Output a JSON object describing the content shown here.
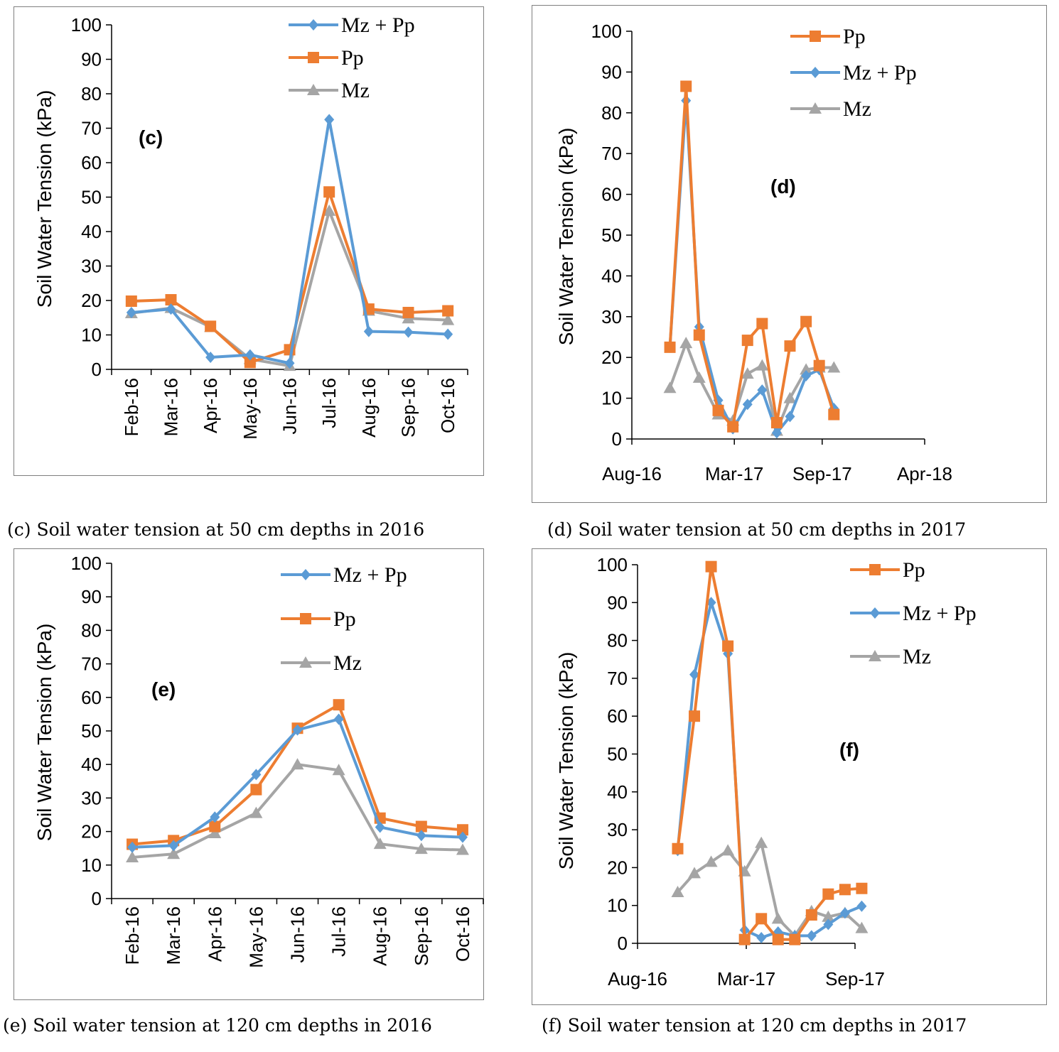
{
  "colors": {
    "mzpp": "#5B9BD5",
    "pp": "#ED7D31",
    "mz": "#A5A5A5",
    "axis": "#000000"
  },
  "chart_data": [
    {
      "id": "c",
      "type": "line",
      "panel_label": "(c)",
      "ylabel": "Soil Water Tension (kPa)",
      "ylim": [
        0,
        100
      ],
      "yticks": [
        0,
        10,
        20,
        30,
        40,
        50,
        60,
        70,
        80,
        90,
        100
      ],
      "categories": [
        "Feb-16",
        "Mar-16",
        "Apr-16",
        "May-16",
        "Jun-16",
        "Jul-16",
        "Aug-16",
        "Sep-16",
        "Oct-16"
      ],
      "legend": [
        "Mz + Pp",
        "Pp",
        "Mz"
      ],
      "series": [
        {
          "name": "Mz + Pp",
          "key": "mzpp",
          "values": [
            16.5,
            17.5,
            3.5,
            4.2,
            1.8,
            72.5,
            11,
            10.8,
            10.2
          ]
        },
        {
          "name": "Pp",
          "key": "pp",
          "values": [
            19.8,
            20.2,
            12.5,
            2,
            5.7,
            51.5,
            17.5,
            16.5,
            17
          ]
        },
        {
          "name": "Mz",
          "key": "mz",
          "values": [
            16.3,
            17.8,
            12.3,
            3,
            1,
            46,
            17,
            14.8,
            14.3
          ]
        }
      ],
      "caption": "(c) Soil water tension at 50 cm depths in 2016"
    },
    {
      "id": "d",
      "type": "line",
      "panel_label": "(d)",
      "ylabel": "Soil Water Tension (kPa)",
      "ylim": [
        0,
        100
      ],
      "yticks": [
        0,
        10,
        20,
        30,
        40,
        50,
        60,
        70,
        80,
        90,
        100
      ],
      "x_axis": "date",
      "xlim": [
        0,
        20
      ],
      "xticks": [
        {
          "label": "Aug-16",
          "x": 0
        },
        {
          "label": "Mar-17",
          "x": 7
        },
        {
          "label": "Sep-17",
          "x": 13
        },
        {
          "label": "Apr-18",
          "x": 20
        }
      ],
      "legend": [
        "Pp",
        "Mz + Pp",
        "Mz"
      ],
      "series": [
        {
          "name": "Pp",
          "key": "pp",
          "x": [
            2.6,
            3.7,
            4.6,
            5.9,
            6.9,
            7.9,
            8.9,
            9.9,
            10.8,
            11.9,
            12.8,
            13.8
          ],
          "values": [
            22.5,
            86.5,
            25.5,
            7,
            3,
            24.2,
            28.3,
            4,
            22.8,
            28.8,
            18,
            6
          ]
        },
        {
          "name": "Mz + Pp",
          "key": "mzpp",
          "x": [
            2.6,
            3.7,
            4.6,
            5.9,
            6.9,
            7.9,
            8.9,
            9.9,
            10.8,
            11.9,
            12.8,
            13.8
          ],
          "values": [
            22.5,
            83,
            27.5,
            9.5,
            2.5,
            8.5,
            12,
            1.5,
            5.5,
            15.5,
            17,
            7.5
          ]
        },
        {
          "name": "Mz",
          "key": "mz",
          "x": [
            2.6,
            3.7,
            4.6,
            5.9,
            6.9,
            7.9,
            8.9,
            9.9,
            10.8,
            11.9,
            12.8,
            13.8
          ],
          "values": [
            12.5,
            23.5,
            15,
            6,
            4.5,
            16,
            18,
            2,
            10,
            17,
            17.5,
            17.5
          ]
        }
      ],
      "caption": "(d) Soil water tension at 50 cm depths in 2017"
    },
    {
      "id": "e",
      "type": "line",
      "panel_label": "(e)",
      "ylabel": "Soil Water Tension (kPa)",
      "ylim": [
        0,
        100
      ],
      "yticks": [
        0,
        10,
        20,
        30,
        40,
        50,
        60,
        70,
        80,
        90,
        100
      ],
      "categories": [
        "Feb-16",
        "Mar-16",
        "Apr-16",
        "May-16",
        "Jun-16",
        "Jul-16",
        "Aug-16",
        "Sep-16",
        "Oct-16"
      ],
      "legend": [
        "Mz + Pp",
        "Pp",
        "Mz"
      ],
      "series": [
        {
          "name": "Mz + Pp",
          "key": "mzpp",
          "values": [
            15.3,
            15.8,
            24.3,
            37,
            50.3,
            53.5,
            21.3,
            18.8,
            18.3
          ]
        },
        {
          "name": "Pp",
          "key": "pp",
          "values": [
            16.2,
            17.3,
            21.5,
            32.5,
            50.8,
            57.8,
            24,
            21.5,
            20.5
          ]
        },
        {
          "name": "Mz",
          "key": "mz",
          "values": [
            12.3,
            13.3,
            19.5,
            25.5,
            40,
            38.3,
            16.3,
            14.8,
            14.5
          ]
        }
      ],
      "caption": "(e) Soil water tension at 120 cm depths in 2016"
    },
    {
      "id": "f",
      "type": "line",
      "panel_label": "(f)",
      "ylabel": "Soil Water Tension (kPa)",
      "ylim": [
        0,
        100
      ],
      "yticks": [
        0,
        10,
        20,
        30,
        40,
        50,
        60,
        70,
        80,
        90,
        100
      ],
      "x_axis": "date",
      "xlim": [
        0,
        13
      ],
      "xticks": [
        {
          "label": "Aug-16",
          "x": 0
        },
        {
          "label": "Mar-17",
          "x": 6.5
        },
        {
          "label": "Sep-17",
          "x": 13
        }
      ],
      "legend": [
        "Pp",
        "Mz + Pp",
        "Mz"
      ],
      "series": [
        {
          "name": "Pp",
          "key": "pp",
          "x": [
            2.4,
            3.4,
            4.4,
            5.4,
            6.4,
            7.4,
            8.4,
            9.4,
            10.4,
            11.4,
            12.4,
            13.4
          ],
          "values": [
            25,
            60,
            99.5,
            78.5,
            1,
            6.5,
            1,
            1,
            7.5,
            13,
            14.2,
            14.5
          ]
        },
        {
          "name": "Mz + Pp",
          "key": "mzpp",
          "x": [
            2.4,
            3.4,
            4.4,
            5.4,
            6.4,
            7.4,
            8.4,
            9.4,
            10.4,
            11.4,
            12.4,
            13.4
          ],
          "values": [
            24.5,
            71,
            90,
            76.5,
            3.5,
            1.5,
            3,
            2,
            2,
            5,
            8,
            9.8
          ]
        },
        {
          "name": "Mz",
          "key": "mz",
          "x": [
            2.4,
            3.4,
            4.4,
            5.4,
            6.4,
            7.4,
            8.4,
            9.4,
            10.4,
            11.4,
            12.4,
            13.4
          ],
          "values": [
            13.5,
            18.5,
            21.5,
            24.5,
            19,
            26.5,
            6.5,
            2,
            8.5,
            7,
            8,
            4
          ]
        }
      ],
      "caption": "(f) Soil water tension at 120 cm depths in 2017"
    }
  ]
}
